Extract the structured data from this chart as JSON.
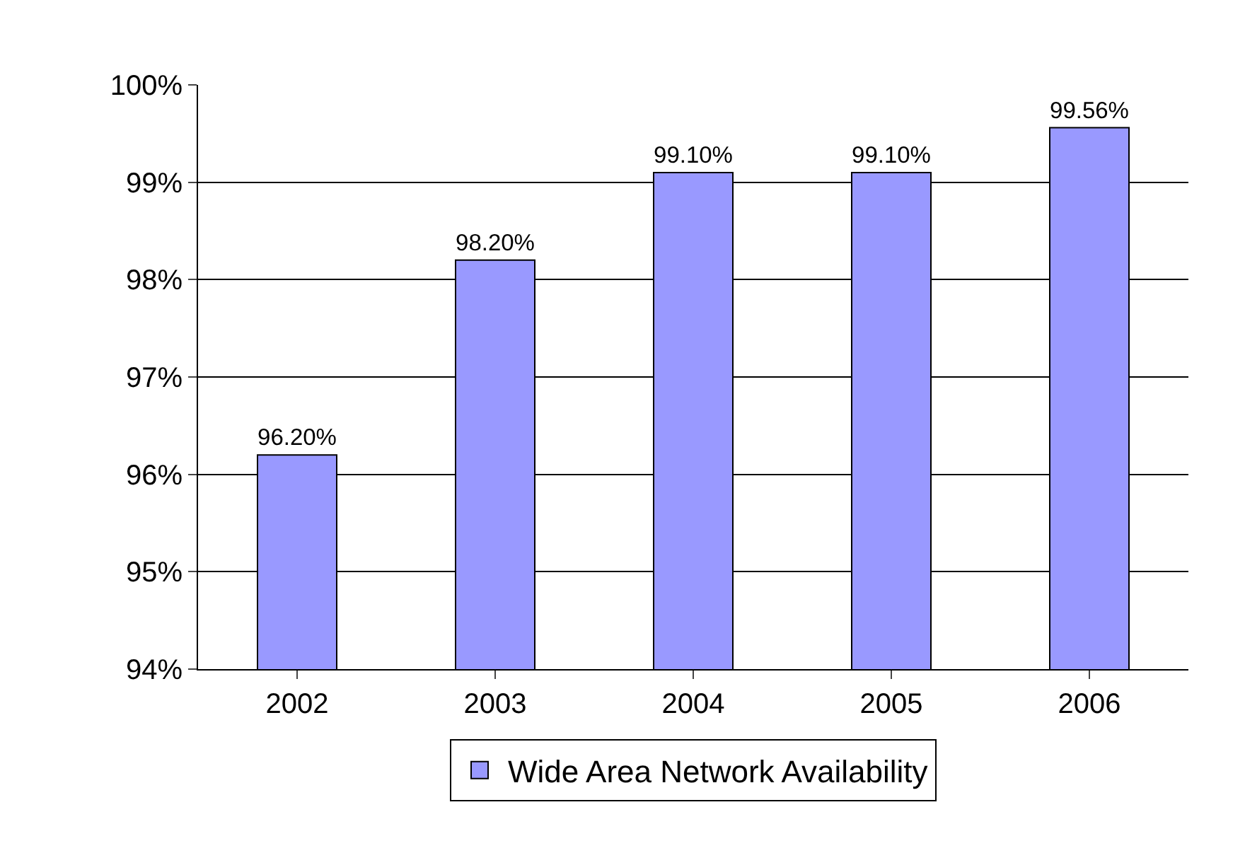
{
  "chart_data": {
    "type": "bar",
    "categories": [
      "2002",
      "2003",
      "2004",
      "2005",
      "2006"
    ],
    "series": [
      {
        "name": "Wide Area Network Availability",
        "color": "#9999ff",
        "values": [
          96.2,
          98.2,
          99.1,
          99.1,
          99.56
        ],
        "value_labels": [
          "96.20%",
          "98.20%",
          "99.10%",
          "99.10%",
          "99.56%"
        ]
      }
    ],
    "ylim": [
      94,
      100
    ],
    "yticks": [
      {
        "value": 94,
        "label": "94%"
      },
      {
        "value": 95,
        "label": "95%"
      },
      {
        "value": 96,
        "label": "96%"
      },
      {
        "value": 97,
        "label": "97%"
      },
      {
        "value": 98,
        "label": "98%"
      },
      {
        "value": 99,
        "label": "99%"
      },
      {
        "value": 100,
        "label": "100%"
      }
    ],
    "grid": "y",
    "legend": "bottom"
  }
}
